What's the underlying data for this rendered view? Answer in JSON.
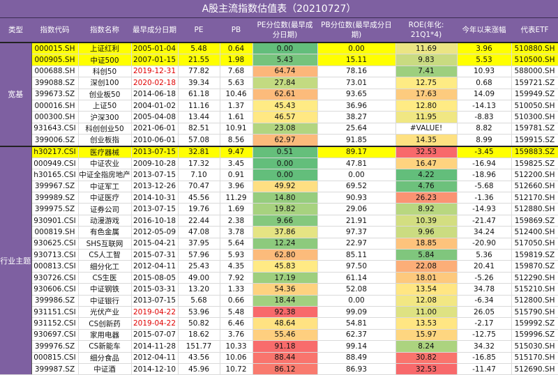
{
  "title": "A股主流指数估值表（20210727）",
  "headers": [
    "类型",
    "指数代码",
    "指数名称",
    "最早成分日期",
    "PE",
    "PB",
    "PE分位数(最早成分日期)",
    "PB分位数(最早成分日期)",
    "ROE(年化: 21Q1*4)",
    "今年以来涨幅",
    "代表ETF"
  ],
  "colors": {
    "header": "#7e60a1",
    "highlight": "#ffff00",
    "heat_low": "#63be7b",
    "heat_mid": "#ffeb84",
    "heat_high": "#f8696b",
    "red_date": "#e00000"
  },
  "groups": [
    {
      "label": "宽基",
      "rows": 9
    },
    {
      "label": "行业主题",
      "rows": 20
    }
  ],
  "rows": [
    {
      "code": "000015.SH",
      "name": "上证红利",
      "date": "2005-01-04",
      "pe": "5.48",
      "pb": "0.64",
      "pe_pct": "0.00",
      "pb_pct": "0.00",
      "roe": "11.69",
      "ytd": "3.96",
      "etf": "510880.SH",
      "highlight": true
    },
    {
      "code": "000905.SH",
      "name": "中证500",
      "date": "2007-01-15",
      "pe": "21.55",
      "pb": "1.98",
      "pe_pct": "5.43",
      "pb_pct": "15.11",
      "roe": "9.83",
      "ytd": "5.53",
      "etf": "510500.SH",
      "highlight": true
    },
    {
      "code": "000688.SH",
      "name": "科创50",
      "date": "2019-12-31",
      "pe": "77.82",
      "pb": "7.68",
      "pe_pct": "64.74",
      "pb_pct": "78.16",
      "roe": "7.41",
      "ytd": "10.93",
      "etf": "588000.SH",
      "date_red": true
    },
    {
      "code": "399088.SZ",
      "name": "深创100",
      "date": "2020-02-18",
      "pe": "39.34",
      "pb": "5.63",
      "pe_pct": "27.84",
      "pb_pct": "73.01",
      "roe": "12.75",
      "ytd": "0.68",
      "etf": "159721.SZ",
      "date_red": true
    },
    {
      "code": "399673.SZ",
      "name": "创业板50",
      "date": "2014-06-18",
      "pe": "61.18",
      "pb": "10.46",
      "pe_pct": "62.61",
      "pb_pct": "93.65",
      "roe": "17.63",
      "ytd": "14.09",
      "etf": "159949.SZ"
    },
    {
      "code": "000016.SH",
      "name": "上证50",
      "date": "2004-01-02",
      "pe": "11.16",
      "pb": "1.37",
      "pe_pct": "45.43",
      "pb_pct": "36.96",
      "roe": "12.80",
      "ytd": "-14.13",
      "etf": "510050.SH"
    },
    {
      "code": "000300.SH",
      "name": "沪深300",
      "date": "2005-04-08",
      "pe": "13.44",
      "pb": "1.61",
      "pe_pct": "46.57",
      "pb_pct": "38.27",
      "roe": "11.95",
      "ytd": "-8.83",
      "etf": "510300.SH"
    },
    {
      "code": "931643.CSI",
      "name": "科创创业50",
      "date": "2021-06-01",
      "pe": "82.51",
      "pb": "10.91",
      "pe_pct": "23.08",
      "pb_pct": "25.64",
      "roe": "#VALUE!",
      "ytd": "8.82",
      "etf": "159781.SZ"
    },
    {
      "code": "399006.SZ",
      "name": "创业板指",
      "date": "2010-06-01",
      "pe": "57.08",
      "pb": "8.56",
      "pe_pct": "62.97",
      "pb_pct": "91.85",
      "roe": "14.35",
      "ytd": "8.99",
      "etf": "159915.SZ"
    },
    {
      "code": "h30217.CSI",
      "name": "医疗器械",
      "date": "2013-07-15",
      "pe": "32.81",
      "pb": "9.47",
      "pe_pct": "0.51",
      "pb_pct": "89.17",
      "roe": "32.53",
      "ytd": "-3.45",
      "etf": "159883.SZ",
      "highlight": true
    },
    {
      "code": "000949.CSI",
      "name": "中证农业",
      "date": "2009-10-28",
      "pe": "17.32",
      "pb": "3.45",
      "pe_pct": "0.00",
      "pb_pct": "47.81",
      "roe": "16.47",
      "ytd": "-16.94",
      "etf": "159825.SZ"
    },
    {
      "code": "h30165.CSI",
      "name": "中证全指房地产",
      "date": "2013-07-15",
      "pe": "7.10",
      "pb": "0.91",
      "pe_pct": "0.00",
      "pb_pct": "0.00",
      "roe": "4.22",
      "ytd": "-18.96",
      "etf": "512200.SH"
    },
    {
      "code": "399967.SZ",
      "name": "中证军工",
      "date": "2013-12-26",
      "pe": "70.47",
      "pb": "3.96",
      "pe_pct": "49.92",
      "pb_pct": "69.52",
      "roe": "4.76",
      "ytd": "-5.68",
      "etf": "512660.SH"
    },
    {
      "code": "399989.SZ",
      "name": "中证医疗",
      "date": "2014-10-31",
      "pe": "45.56",
      "pb": "11.29",
      "pe_pct": "14.80",
      "pb_pct": "90.93",
      "roe": "26.23",
      "ytd": "-1.36",
      "etf": "512170.SH"
    },
    {
      "code": "399975.SZ",
      "name": "证券公司",
      "date": "2013-07-15",
      "pe": "19.76",
      "pb": "1.69",
      "pe_pct": "19.82",
      "pb_pct": "29.06",
      "roe": "8.92",
      "ytd": "-14.93",
      "etf": "512880.SH"
    },
    {
      "code": "930901.CSI",
      "name": "动漫游戏",
      "date": "2016-10-18",
      "pe": "22.44",
      "pb": "2.38",
      "pe_pct": "9.66",
      "pb_pct": "21.91",
      "roe": "10.39",
      "ytd": "-21.47",
      "etf": "159869.SZ"
    },
    {
      "code": "000819.SH",
      "name": "有色金属",
      "date": "2012-05-09",
      "pe": "47.08",
      "pb": "3.78",
      "pe_pct": "37.86",
      "pb_pct": "97.37",
      "roe": "9.96",
      "ytd": "34.24",
      "etf": "512400.SH"
    },
    {
      "code": "930625.CSI",
      "name": "SHS互联网",
      "date": "2015-04-21",
      "pe": "37.95",
      "pb": "5.64",
      "pe_pct": "12.24",
      "pb_pct": "22.97",
      "roe": "18.85",
      "ytd": "-20.90",
      "etf": "517050.SH"
    },
    {
      "code": "930713.CSI",
      "name": "CS人工智",
      "date": "2015-07-31",
      "pe": "57.96",
      "pb": "5.93",
      "pe_pct": "62.80",
      "pb_pct": "85.11",
      "roe": "5.84",
      "ytd": "5.36",
      "etf": "159819.SZ"
    },
    {
      "code": "000813.CSI",
      "name": "细分化工",
      "date": "2012-04-11",
      "pe": "25.43",
      "pb": "4.35",
      "pe_pct": "45.83",
      "pb_pct": "97.50",
      "roe": "22.08",
      "ytd": "20.41",
      "etf": "159870.SZ"
    },
    {
      "code": "930726.CSI",
      "name": "CS生医",
      "date": "2015-08-05",
      "pe": "49.00",
      "pb": "7.92",
      "pe_pct": "17.19",
      "pb_pct": "61.14",
      "roe": "18.01",
      "ytd": "-5.26",
      "etf": "512290.SH"
    },
    {
      "code": "930606.CSI",
      "name": "中证钢铁",
      "date": "2015-03-31",
      "pe": "13.20",
      "pb": "1.33",
      "pe_pct": "54.36",
      "pb_pct": "52.08",
      "roe": "13.54",
      "ytd": "34.78",
      "etf": "515210.SH"
    },
    {
      "code": "399986.SZ",
      "name": "中证银行",
      "date": "2013-07-15",
      "pe": "5.68",
      "pb": "0.66",
      "pe_pct": "18.44",
      "pb_pct": "0.00",
      "roe": "12.08",
      "ytd": "-6.34",
      "etf": "512800.SH"
    },
    {
      "code": "931151.CSI",
      "name": "光伏产业",
      "date": "2019-04-22",
      "pe": "53.96",
      "pb": "5.48",
      "pe_pct": "92.38",
      "pb_pct": "99.09",
      "roe": "11.00",
      "ytd": "26.05",
      "etf": "515790.SH",
      "date_red": true
    },
    {
      "code": "931152.CSI",
      "name": "CS创新药",
      "date": "2019-04-22",
      "pe": "50.82",
      "pb": "6.46",
      "pe_pct": "48.64",
      "pb_pct": "54.81",
      "roe": "13.53",
      "ytd": "-2.17",
      "etf": "159992.SZ",
      "date_red": true
    },
    {
      "code": "930697.CSI",
      "name": "家用电器",
      "date": "2015-07-07",
      "pe": "18.62",
      "pb": "3.76",
      "pe_pct": "55.46",
      "pb_pct": "62.37",
      "roe": "15.97",
      "ytd": "-12.75",
      "etf": "159996.SZ"
    },
    {
      "code": "399976.SZ",
      "name": "CS新能车",
      "date": "2014-11-28",
      "pe": "151.77",
      "pb": "10.33",
      "pe_pct": "91.18",
      "pb_pct": "99.14",
      "roe": "8.24",
      "ytd": "34.32",
      "etf": "515030.SH"
    },
    {
      "code": "000815.CSI",
      "name": "细分食品",
      "date": "2012-04-11",
      "pe": "43.56",
      "pb": "10.06",
      "pe_pct": "88.44",
      "pb_pct": "88.49",
      "roe": "30.82",
      "ytd": "-16.85",
      "etf": "515170.SH"
    },
    {
      "code": "399987.SZ",
      "name": "中证酒",
      "date": "2014-12-10",
      "pe": "45.96",
      "pb": "10.72",
      "pe_pct": "86.12",
      "pb_pct": "86.93",
      "roe": "32.53",
      "ytd": "-11.47",
      "etf": "512690.SH"
    }
  ]
}
